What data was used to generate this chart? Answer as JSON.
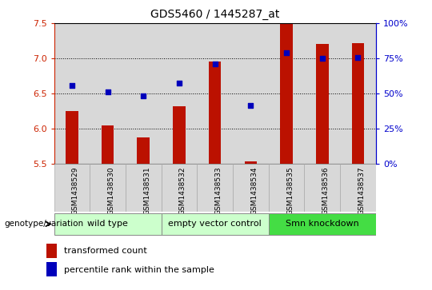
{
  "title": "GDS5460 / 1445287_at",
  "samples": [
    "GSM1438529",
    "GSM1438530",
    "GSM1438531",
    "GSM1438532",
    "GSM1438533",
    "GSM1438534",
    "GSM1438535",
    "GSM1438536",
    "GSM1438537"
  ],
  "transformed_count": [
    6.25,
    6.05,
    5.88,
    6.32,
    6.95,
    5.53,
    7.5,
    7.2,
    7.22
  ],
  "percentile_rank": [
    6.62,
    6.52,
    6.47,
    6.65,
    6.92,
    6.33,
    7.08,
    7.0,
    7.01
  ],
  "percentile_right_axis": [
    0,
    25,
    50,
    75,
    100
  ],
  "percentile_right_vals": [
    5.5,
    6.0,
    6.5,
    7.0,
    7.5
  ],
  "ylim": [
    5.5,
    7.5
  ],
  "yticks": [
    5.5,
    6.0,
    6.5,
    7.0,
    7.5
  ],
  "bar_color": "#bb1100",
  "dot_color": "#0000bb",
  "bar_bottom": 5.5,
  "group_colors": [
    "#ccffcc",
    "#ccffcc",
    "#44dd44"
  ],
  "group_labels": [
    "wild type",
    "empty vector control",
    "Smn knockdown"
  ],
  "group_ranges": [
    [
      0,
      3
    ],
    [
      3,
      6
    ],
    [
      6,
      9
    ]
  ],
  "group_label_prefix": "genotype/variation",
  "legend_items": [
    {
      "label": "transformed count",
      "color": "#bb1100"
    },
    {
      "label": "percentile rank within the sample",
      "color": "#0000bb"
    }
  ],
  "tick_color_left": "#cc2200",
  "tick_color_right": "#0000cc",
  "col_bg": "#d8d8d8"
}
